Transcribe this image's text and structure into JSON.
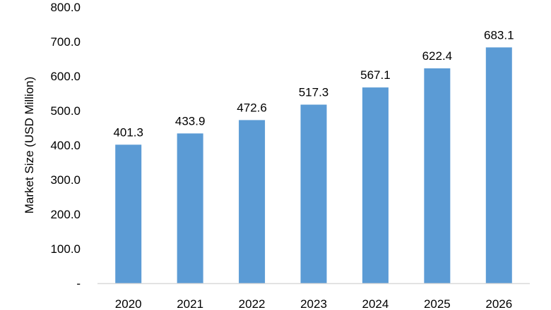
{
  "chart_data": {
    "type": "bar",
    "title": "",
    "xlabel": "",
    "ylabel": "Market Size (USD Million)",
    "categories": [
      "2020",
      "2021",
      "2022",
      "2023",
      "2024",
      "2025",
      "2026"
    ],
    "values": [
      401.3,
      433.9,
      472.6,
      517.3,
      567.1,
      622.4,
      683.1
    ],
    "value_labels": [
      "401.3",
      "433.9",
      "472.6",
      "517.3",
      "567.1",
      "622.4",
      "683.1"
    ],
    "ylim": [
      0,
      800
    ],
    "yticks": [
      0,
      100,
      200,
      300,
      400,
      500,
      600,
      700,
      800
    ],
    "ytick_labels": [
      "-",
      "100.0",
      "200.0",
      "300.0",
      "400.0",
      "500.0",
      "600.0",
      "700.0",
      "800.0"
    ],
    "grid": false,
    "legend": "none",
    "bar_color": "#5b9bd5",
    "axis_color": "#d9d9d9"
  }
}
